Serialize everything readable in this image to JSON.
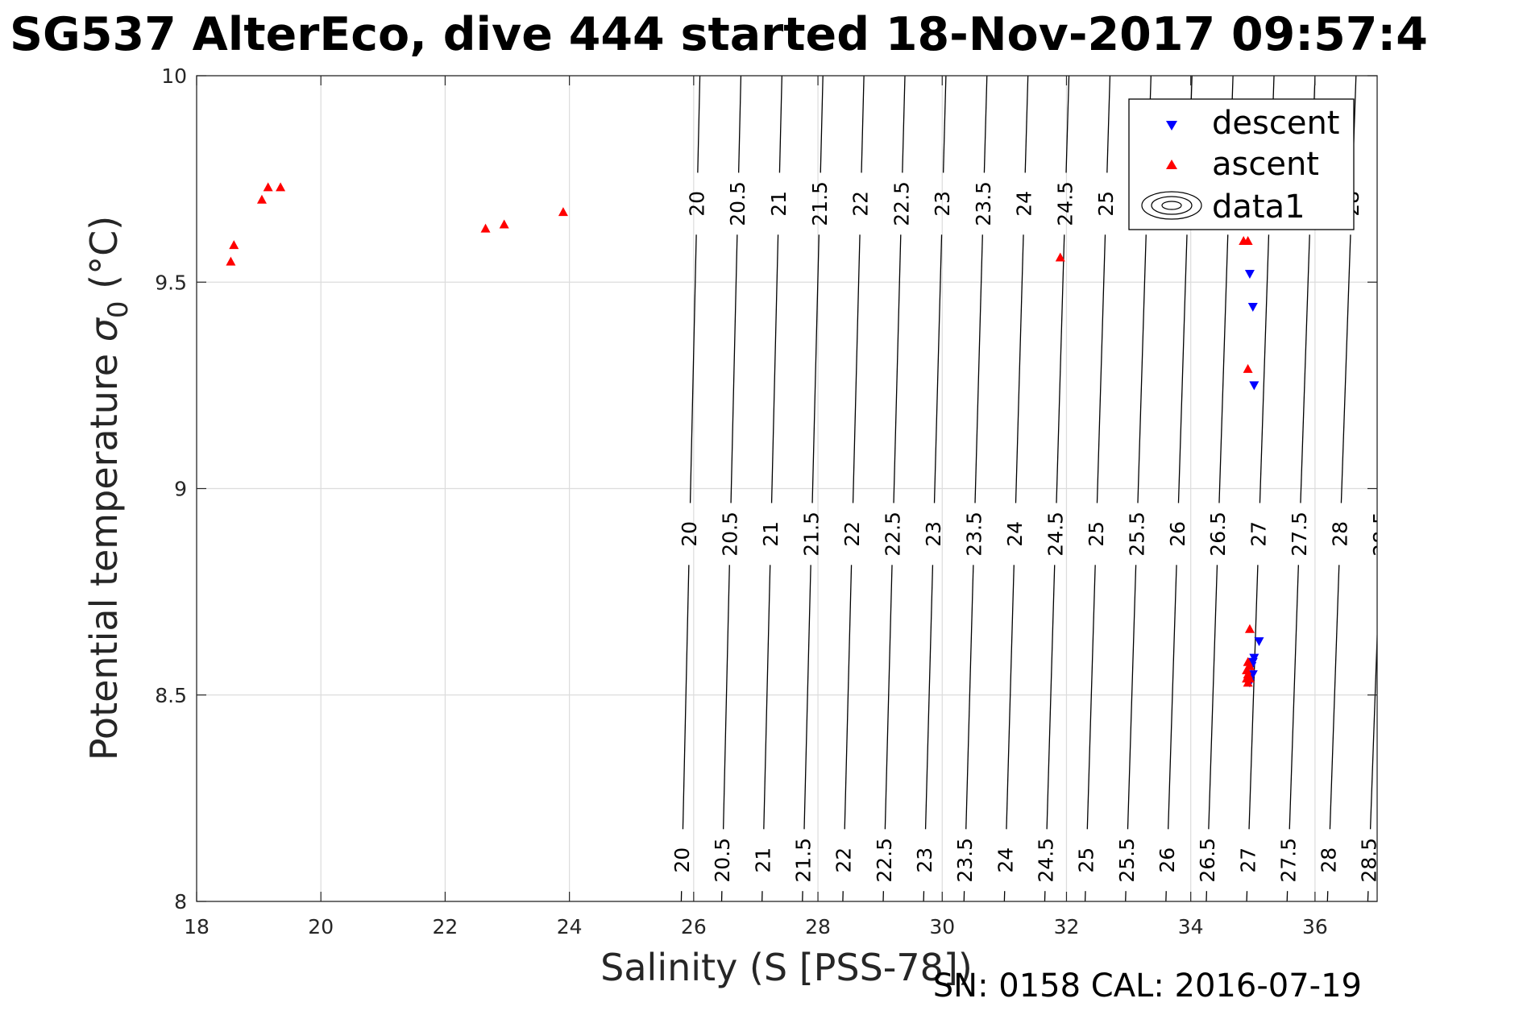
{
  "chart_data": {
    "type": "scatter",
    "title": "SG537 AlterEco, dive 444 started 18-Nov-2017 09:57:4",
    "xlabel": "Salinity (S [PSS-78])",
    "ylabel_prefix": "Potential temperature ",
    "ylabel_symbol": "σ",
    "ylabel_subscript": "0",
    "ylabel_suffix": " (°C)",
    "xlim": [
      18,
      37
    ],
    "ylim": [
      8,
      10
    ],
    "xticks": [
      18,
      20,
      22,
      24,
      26,
      28,
      30,
      32,
      34,
      36
    ],
    "yticks": [
      8,
      8.5,
      9,
      9.5,
      10
    ],
    "grid": true,
    "legend_position": "top-right",
    "footer": "SN: 0158  CAL: 2016-07-19",
    "series": [
      {
        "name": "descent",
        "color": "#0000ff",
        "marker": "triangle-down",
        "points": [
          [
            34.95,
            9.52
          ],
          [
            35.0,
            9.44
          ],
          [
            35.02,
            9.25
          ],
          [
            35.1,
            8.63
          ],
          [
            35.02,
            8.59
          ],
          [
            35.0,
            8.58
          ],
          [
            34.98,
            8.57
          ],
          [
            35.0,
            8.55
          ],
          [
            34.96,
            8.54
          ],
          [
            34.95,
            8.53
          ]
        ]
      },
      {
        "name": "ascent",
        "color": "#ff0000",
        "marker": "triangle-up",
        "points": [
          [
            18.55,
            9.55
          ],
          [
            18.6,
            9.59
          ],
          [
            19.05,
            9.7
          ],
          [
            19.15,
            9.73
          ],
          [
            19.35,
            9.73
          ],
          [
            22.65,
            9.63
          ],
          [
            22.95,
            9.64
          ],
          [
            23.9,
            9.67
          ],
          [
            31.9,
            9.56
          ],
          [
            34.85,
            9.6
          ],
          [
            34.92,
            9.6
          ],
          [
            34.92,
            9.29
          ],
          [
            34.95,
            8.66
          ],
          [
            34.92,
            8.58
          ],
          [
            34.95,
            8.57
          ],
          [
            34.9,
            8.56
          ],
          [
            34.92,
            8.55
          ],
          [
            34.9,
            8.54
          ],
          [
            34.95,
            8.54
          ],
          [
            34.92,
            8.53
          ]
        ]
      },
      {
        "name": "data1",
        "type": "contour",
        "color": "#000000",
        "levels": [
          20,
          20.5,
          21,
          21.5,
          22,
          22.5,
          23,
          23.5,
          24,
          24.5,
          25,
          25.5,
          26,
          26.5,
          27,
          27.5,
          28,
          28.5
        ],
        "label_rows_y": [
          9.69,
          8.89,
          8.1
        ],
        "level_salinity_at_y8": [
          25.8,
          26.45,
          27.1,
          27.75,
          28.4,
          29.05,
          29.7,
          30.35,
          31.0,
          31.65,
          32.3,
          32.95,
          33.6,
          34.25,
          34.9,
          35.55,
          36.2,
          36.85
        ],
        "level_salinity_at_y10": [
          26.1,
          26.76,
          27.42,
          28.08,
          28.74,
          29.4,
          30.06,
          30.72,
          31.38,
          32.04,
          32.7,
          33.36,
          34.02,
          34.68,
          35.34,
          36.0,
          36.66,
          37.32
        ]
      }
    ]
  }
}
